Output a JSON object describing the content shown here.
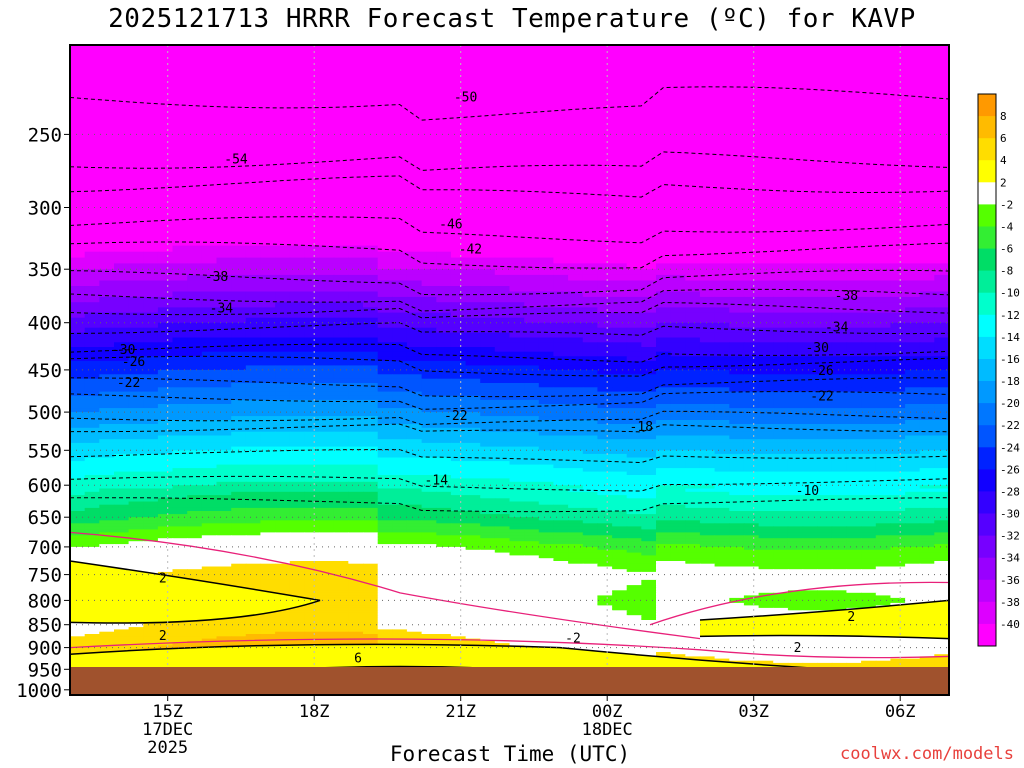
{
  "header": {
    "title": "2025121713 HRRR Forecast Temperature (ºC) for KAVP"
  },
  "footer": {
    "xlabel": "Forecast Time (UTC)",
    "watermark": "coolwx.com/models"
  },
  "chart_data": {
    "type": "heatmap",
    "title": "2025121713 HRRR Forecast Temperature (ºC) for KAVP",
    "xlabel": "Forecast Time (UTC)",
    "ylabel": "",
    "y_axis": {
      "scale": "log-pressure",
      "ticks": [
        250,
        300,
        350,
        400,
        450,
        500,
        550,
        600,
        650,
        700,
        750,
        800,
        850,
        900,
        950,
        1000
      ],
      "range_hPa": [
        200,
        1013
      ]
    },
    "x_axis": {
      "range_hours_utc": [
        13,
        31
      ],
      "ticks": [
        {
          "x": 15,
          "label": "15Z",
          "sub": [
            "17DEC",
            "2025"
          ]
        },
        {
          "x": 18,
          "label": "18Z",
          "sub": []
        },
        {
          "x": 21,
          "label": "21Z",
          "sub": []
        },
        {
          "x": 24,
          "label": "00Z",
          "sub": [
            "18DEC"
          ]
        },
        {
          "x": 27,
          "label": "03Z",
          "sub": []
        },
        {
          "x": 30,
          "label": "06Z",
          "sub": []
        }
      ]
    },
    "grid": true,
    "ground": {
      "above_hPa": 975,
      "color": "#a0522d"
    },
    "colorbar": {
      "placement": "right",
      "labels": [
        "8",
        "6",
        "4",
        "2",
        "-2",
        "-4",
        "-6",
        "-8",
        "-10",
        "-12",
        "-14",
        "-16",
        "-18",
        "-20",
        "-22",
        "-24",
        "-26",
        "-28",
        "-30",
        "-32",
        "-34",
        "-36",
        "-38",
        "-40"
      ],
      "colors": [
        "#ff9900",
        "#ffbb00",
        "#ffdd00",
        "#ffff00",
        "#ffffff",
        "#55ff00",
        "#33ee33",
        "#00dd66",
        "#00ee99",
        "#00ffcc",
        "#00ffff",
        "#00ddff",
        "#00bbff",
        "#0099ff",
        "#0077ff",
        "#0055ff",
        "#0022ff",
        "#1100ff",
        "#3300ff",
        "#5500ff",
        "#7700ff",
        "#9900ff",
        "#bb00ff",
        "#dd00ff",
        "#ff00ff"
      ]
    },
    "temperature_levels": [
      {
        "p": 250,
        "t": -54
      },
      {
        "p": 300,
        "t": -46
      },
      {
        "p": 350,
        "t": -38
      },
      {
        "p": 400,
        "t": -31
      },
      {
        "p": 450,
        "t": -25
      },
      {
        "p": 500,
        "t": -20
      },
      {
        "p": 550,
        "t": -15
      },
      {
        "p": 600,
        "t": -11
      },
      {
        "p": 650,
        "t": -7
      },
      {
        "p": 700,
        "t": -2
      },
      {
        "p": 750,
        "t": 1
      },
      {
        "p": 800,
        "t": 0
      },
      {
        "p": 850,
        "t": 1
      },
      {
        "p": 900,
        "t": 3
      },
      {
        "p": 950,
        "t": 5
      },
      {
        "p": 975,
        "t": 6
      }
    ],
    "contour_labels": [
      {
        "x": 16.4,
        "p": 266,
        "label": "-54"
      },
      {
        "x": 21.1,
        "p": 228,
        "label": "-50"
      },
      {
        "x": 20.8,
        "p": 313,
        "label": "-46"
      },
      {
        "x": 21.2,
        "p": 333,
        "label": "-42"
      },
      {
        "x": 16.0,
        "p": 357,
        "label": "-38"
      },
      {
        "x": 28.9,
        "p": 374,
        "label": "-38"
      },
      {
        "x": 16.1,
        "p": 386,
        "label": "-34"
      },
      {
        "x": 28.7,
        "p": 405,
        "label": "-34"
      },
      {
        "x": 14.1,
        "p": 428,
        "label": "-30"
      },
      {
        "x": 28.3,
        "p": 426,
        "label": "-30"
      },
      {
        "x": 14.3,
        "p": 441,
        "label": "-26"
      },
      {
        "x": 28.4,
        "p": 451,
        "label": "-26"
      },
      {
        "x": 14.2,
        "p": 465,
        "label": "-22"
      },
      {
        "x": 20.9,
        "p": 505,
        "label": "-22"
      },
      {
        "x": 28.4,
        "p": 481,
        "label": "-22"
      },
      {
        "x": 24.7,
        "p": 519,
        "label": "-18"
      },
      {
        "x": 20.5,
        "p": 593,
        "label": "-14"
      },
      {
        "x": 28.1,
        "p": 609,
        "label": "-10"
      },
      {
        "x": 14.9,
        "p": 757,
        "label": "2"
      },
      {
        "x": 14.9,
        "p": 874,
        "label": "2"
      },
      {
        "x": 23.3,
        "p": 880,
        "label": "-2"
      },
      {
        "x": 29.0,
        "p": 834,
        "label": "2"
      },
      {
        "x": 27.9,
        "p": 901,
        "label": "2"
      },
      {
        "x": 18.9,
        "p": 925,
        "label": "6"
      }
    ]
  }
}
